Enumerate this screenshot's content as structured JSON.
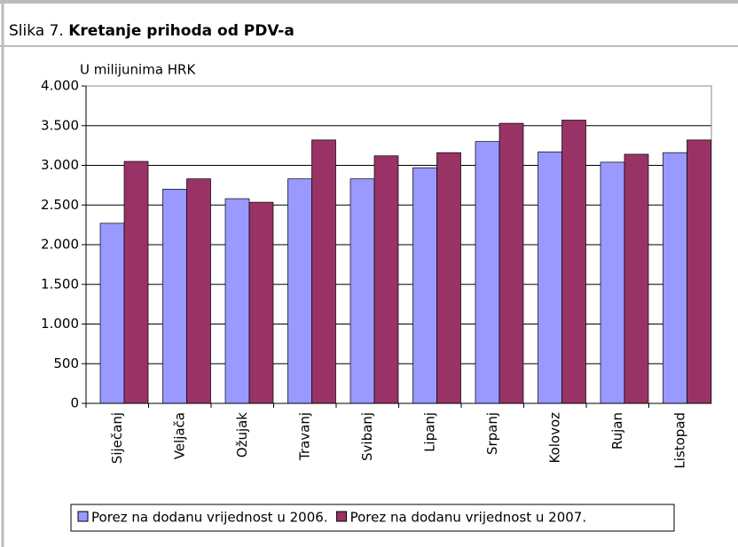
{
  "chart_data": {
    "type": "bar",
    "figure_label": "Slika 7.",
    "title": "Kretanje prihoda od PDV-a",
    "y_axis_label": "U milijunima HRK",
    "categories": [
      "Siječanj",
      "Veljača",
      "Ožujak",
      "Travanj",
      "Svibanj",
      "Lipanj",
      "Srpanj",
      "Kolovoz",
      "Rujan",
      "Listopad"
    ],
    "series": [
      {
        "name": "Porez na dodanu vrijednost u 2006.",
        "color": "#9999ff",
        "values": [
          2270,
          2700,
          2580,
          2830,
          2830,
          2970,
          3300,
          3170,
          3040,
          3160
        ]
      },
      {
        "name": "Porez na dodanu vrijednost u 2007.",
        "color": "#993366",
        "values": [
          3050,
          2830,
          2535,
          3320,
          3120,
          3160,
          3530,
          3570,
          3140,
          3320
        ]
      }
    ],
    "ylim": [
      0,
      4000
    ],
    "yticks": [
      0,
      500,
      {
        "value": 1000,
        "label": "1.000"
      },
      {
        "value": 1500,
        "label": "1.500"
      },
      {
        "value": 2000,
        "label": "2.000"
      },
      {
        "value": 2500,
        "label": "2.500"
      },
      {
        "value": 3000,
        "label": "3.000"
      },
      {
        "value": 3500,
        "label": "3.500"
      },
      {
        "value": 4000,
        "label": "4.000"
      }
    ],
    "grid": true,
    "legend": "bottom"
  }
}
